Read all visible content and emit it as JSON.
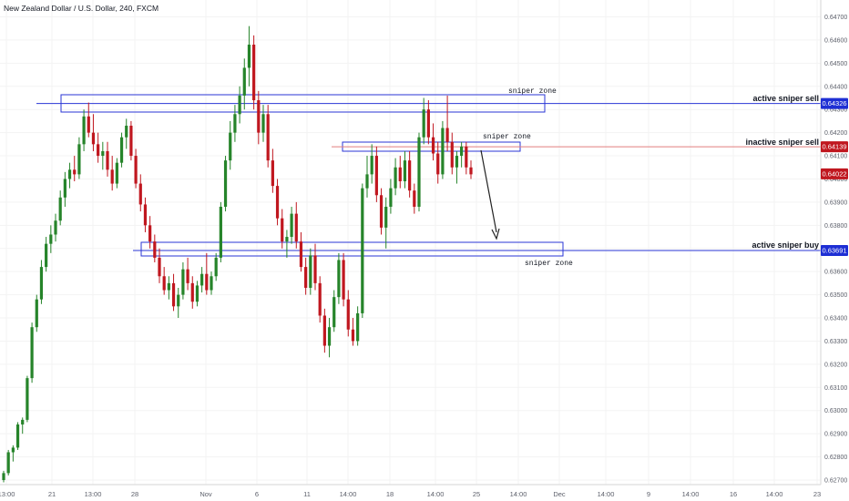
{
  "header": {
    "title": "New Zealand Dollar / U.S. Dollar, 240, FXCM"
  },
  "colors": {
    "up": "#26842a",
    "down": "#c0171f",
    "zone": "#2a36d6",
    "sell_line": "#2a36d6",
    "inactive_line": "#e27e7e",
    "inactive_badge": "#c0171f",
    "current_badge": "#c0171f",
    "buy_badge": "#1e2fd4",
    "sell_badge": "#1e2fd4",
    "axis_text": "#5d606b"
  },
  "annotations": {
    "zone_top_label": "sniper zone",
    "zone_mid_label": "sniper zone",
    "zone_bottom_label": "sniper zone",
    "active_sell": "active sniper sell",
    "inactive_sell": "inactive sniper sell",
    "active_buy": "active sniper buy"
  },
  "price_badges": {
    "active_sell": "0.64326",
    "inactive_sell": "0.64139",
    "current": "0.64022",
    "active_buy": "0.63691"
  },
  "chart_data": {
    "type": "candlestick",
    "title": "New Zealand Dollar / U.S. Dollar, 240, FXCM",
    "xlabel": "",
    "ylabel": "",
    "ylim": [
      0.627,
      0.6475
    ],
    "y_ticks": [
      "0.64700",
      "0.64600",
      "0.64500",
      "0.64400",
      "0.64300",
      "0.64200",
      "0.64100",
      "0.64000",
      "0.63900",
      "0.63800",
      "0.63700",
      "0.63600",
      "0.63500",
      "0.63400",
      "0.63300",
      "0.63200",
      "0.63100",
      "0.63000",
      "0.62900",
      "0.62800",
      "0.62700"
    ],
    "x_ticks": [
      "13:00",
      "21",
      "13:00",
      "28",
      "Nov",
      "6",
      "11",
      "14:00",
      "18",
      "14:00",
      "25",
      "14:00",
      "Dec",
      "14:00",
      "9",
      "14:00",
      "16",
      "14:00",
      "23"
    ],
    "candles": [
      [
        0.627,
        0.6274,
        0.6269,
        0.6273
      ],
      [
        0.6273,
        0.6283,
        0.6272,
        0.6282
      ],
      [
        0.6282,
        0.6285,
        0.6278,
        0.6284
      ],
      [
        0.6284,
        0.6295,
        0.6283,
        0.6294
      ],
      [
        0.6294,
        0.6297,
        0.629,
        0.6296
      ],
      [
        0.6296,
        0.6315,
        0.6295,
        0.6314
      ],
      [
        0.6314,
        0.6338,
        0.6312,
        0.6336
      ],
      [
        0.6336,
        0.635,
        0.6334,
        0.6348
      ],
      [
        0.6348,
        0.6365,
        0.6346,
        0.6362
      ],
      [
        0.6362,
        0.6375,
        0.636,
        0.6372
      ],
      [
        0.6372,
        0.638,
        0.6368,
        0.6376
      ],
      [
        0.6376,
        0.6385,
        0.6373,
        0.6382
      ],
      [
        0.6382,
        0.6395,
        0.638,
        0.6392
      ],
      [
        0.6392,
        0.6403,
        0.6388,
        0.64
      ],
      [
        0.64,
        0.6407,
        0.6396,
        0.6404
      ],
      [
        0.6404,
        0.641,
        0.6399,
        0.6402
      ],
      [
        0.6402,
        0.6418,
        0.64,
        0.6415
      ],
      [
        0.6415,
        0.643,
        0.6412,
        0.6427
      ],
      [
        0.6427,
        0.6433,
        0.6418,
        0.642
      ],
      [
        0.642,
        0.6428,
        0.6412,
        0.6415
      ],
      [
        0.6415,
        0.642,
        0.6407,
        0.641
      ],
      [
        0.641,
        0.6416,
        0.6404,
        0.6412
      ],
      [
        0.6412,
        0.6416,
        0.6401,
        0.6404
      ],
      [
        0.6404,
        0.641,
        0.6395,
        0.6398
      ],
      [
        0.6398,
        0.6409,
        0.6396,
        0.6407
      ],
      [
        0.6407,
        0.642,
        0.6405,
        0.6418
      ],
      [
        0.6418,
        0.6426,
        0.6413,
        0.6423
      ],
      [
        0.6423,
        0.6425,
        0.6408,
        0.641
      ],
      [
        0.641,
        0.6413,
        0.6396,
        0.6398
      ],
      [
        0.6398,
        0.6402,
        0.6386,
        0.6389
      ],
      [
        0.6389,
        0.6392,
        0.6377,
        0.638
      ],
      [
        0.638,
        0.6384,
        0.637,
        0.6373
      ],
      [
        0.6373,
        0.6376,
        0.6364,
        0.6366
      ],
      [
        0.6366,
        0.637,
        0.6355,
        0.6358
      ],
      [
        0.6358,
        0.6362,
        0.635,
        0.6352
      ],
      [
        0.6352,
        0.6358,
        0.6348,
        0.6355
      ],
      [
        0.6355,
        0.6359,
        0.6343,
        0.6345
      ],
      [
        0.6345,
        0.6353,
        0.634,
        0.635
      ],
      [
        0.635,
        0.6364,
        0.6348,
        0.6361
      ],
      [
        0.6361,
        0.6366,
        0.6352,
        0.6355
      ],
      [
        0.6355,
        0.6358,
        0.6344,
        0.6347
      ],
      [
        0.6347,
        0.6356,
        0.6345,
        0.6354
      ],
      [
        0.6354,
        0.6362,
        0.6351,
        0.6359
      ],
      [
        0.6359,
        0.6368,
        0.635,
        0.6352
      ],
      [
        0.6352,
        0.636,
        0.635,
        0.6358
      ],
      [
        0.6358,
        0.6368,
        0.6356,
        0.6366
      ],
      [
        0.6366,
        0.639,
        0.6364,
        0.6388
      ],
      [
        0.6388,
        0.641,
        0.6386,
        0.6408
      ],
      [
        0.6408,
        0.6425,
        0.6404,
        0.642
      ],
      [
        0.642,
        0.6432,
        0.6416,
        0.6428
      ],
      [
        0.6428,
        0.644,
        0.6424,
        0.6436
      ],
      [
        0.6436,
        0.6452,
        0.643,
        0.6448
      ],
      [
        0.6448,
        0.6466,
        0.644,
        0.6458
      ],
      [
        0.6458,
        0.6462,
        0.643,
        0.6434
      ],
      [
        0.6434,
        0.6438,
        0.6415,
        0.642
      ],
      [
        0.642,
        0.6432,
        0.6416,
        0.6428
      ],
      [
        0.6428,
        0.6432,
        0.6405,
        0.6408
      ],
      [
        0.6408,
        0.6413,
        0.6394,
        0.6397
      ],
      [
        0.6397,
        0.64,
        0.638,
        0.6383
      ],
      [
        0.6383,
        0.6387,
        0.637,
        0.6373
      ],
      [
        0.6373,
        0.6378,
        0.6366,
        0.6375
      ],
      [
        0.6375,
        0.6388,
        0.6372,
        0.6385
      ],
      [
        0.6385,
        0.639,
        0.637,
        0.6373
      ],
      [
        0.6373,
        0.6377,
        0.636,
        0.6362
      ],
      [
        0.6362,
        0.6366,
        0.635,
        0.6353
      ],
      [
        0.6353,
        0.637,
        0.635,
        0.6367
      ],
      [
        0.6367,
        0.6372,
        0.6352,
        0.6355
      ],
      [
        0.6355,
        0.6358,
        0.6338,
        0.6341
      ],
      [
        0.6341,
        0.6344,
        0.6325,
        0.6328
      ],
      [
        0.6328,
        0.634,
        0.6323,
        0.6336
      ],
      [
        0.6336,
        0.6352,
        0.6334,
        0.6349
      ],
      [
        0.6349,
        0.6368,
        0.6346,
        0.6365
      ],
      [
        0.6365,
        0.6368,
        0.6345,
        0.6348
      ],
      [
        0.6348,
        0.6352,
        0.6332,
        0.6335
      ],
      [
        0.6335,
        0.634,
        0.6328,
        0.633
      ],
      [
        0.633,
        0.6345,
        0.6328,
        0.6342
      ],
      [
        0.6342,
        0.6398,
        0.634,
        0.6396
      ],
      [
        0.6396,
        0.641,
        0.6392,
        0.6402
      ],
      [
        0.6402,
        0.6415,
        0.6398,
        0.641
      ],
      [
        0.641,
        0.6414,
        0.639,
        0.6393
      ],
      [
        0.6393,
        0.6396,
        0.6376,
        0.6379
      ],
      [
        0.6379,
        0.6392,
        0.637,
        0.6388
      ],
      [
        0.6388,
        0.64,
        0.6385,
        0.6396
      ],
      [
        0.6396,
        0.6409,
        0.6393,
        0.6405
      ],
      [
        0.6405,
        0.641,
        0.6396,
        0.6399
      ],
      [
        0.6399,
        0.6412,
        0.6396,
        0.6408
      ],
      [
        0.6408,
        0.6412,
        0.6392,
        0.6395
      ],
      [
        0.6395,
        0.6398,
        0.6385,
        0.6388
      ],
      [
        0.6388,
        0.642,
        0.6386,
        0.6418
      ],
      [
        0.6418,
        0.6435,
        0.6415,
        0.643
      ],
      [
        0.643,
        0.6434,
        0.6415,
        0.6418
      ],
      [
        0.6418,
        0.6424,
        0.6408,
        0.6411
      ],
      [
        0.6411,
        0.6416,
        0.6398,
        0.6402
      ],
      [
        0.6402,
        0.6425,
        0.64,
        0.6422
      ],
      [
        0.6422,
        0.6436,
        0.6412,
        0.6416
      ],
      [
        0.6416,
        0.642,
        0.6402,
        0.6405
      ],
      [
        0.6405,
        0.6412,
        0.6398,
        0.641
      ],
      [
        0.641,
        0.6416,
        0.6405,
        0.6414
      ],
      [
        0.6414,
        0.6416,
        0.6402,
        0.6405
      ],
      [
        0.6405,
        0.6408,
        0.64,
        0.6402
      ]
    ]
  }
}
